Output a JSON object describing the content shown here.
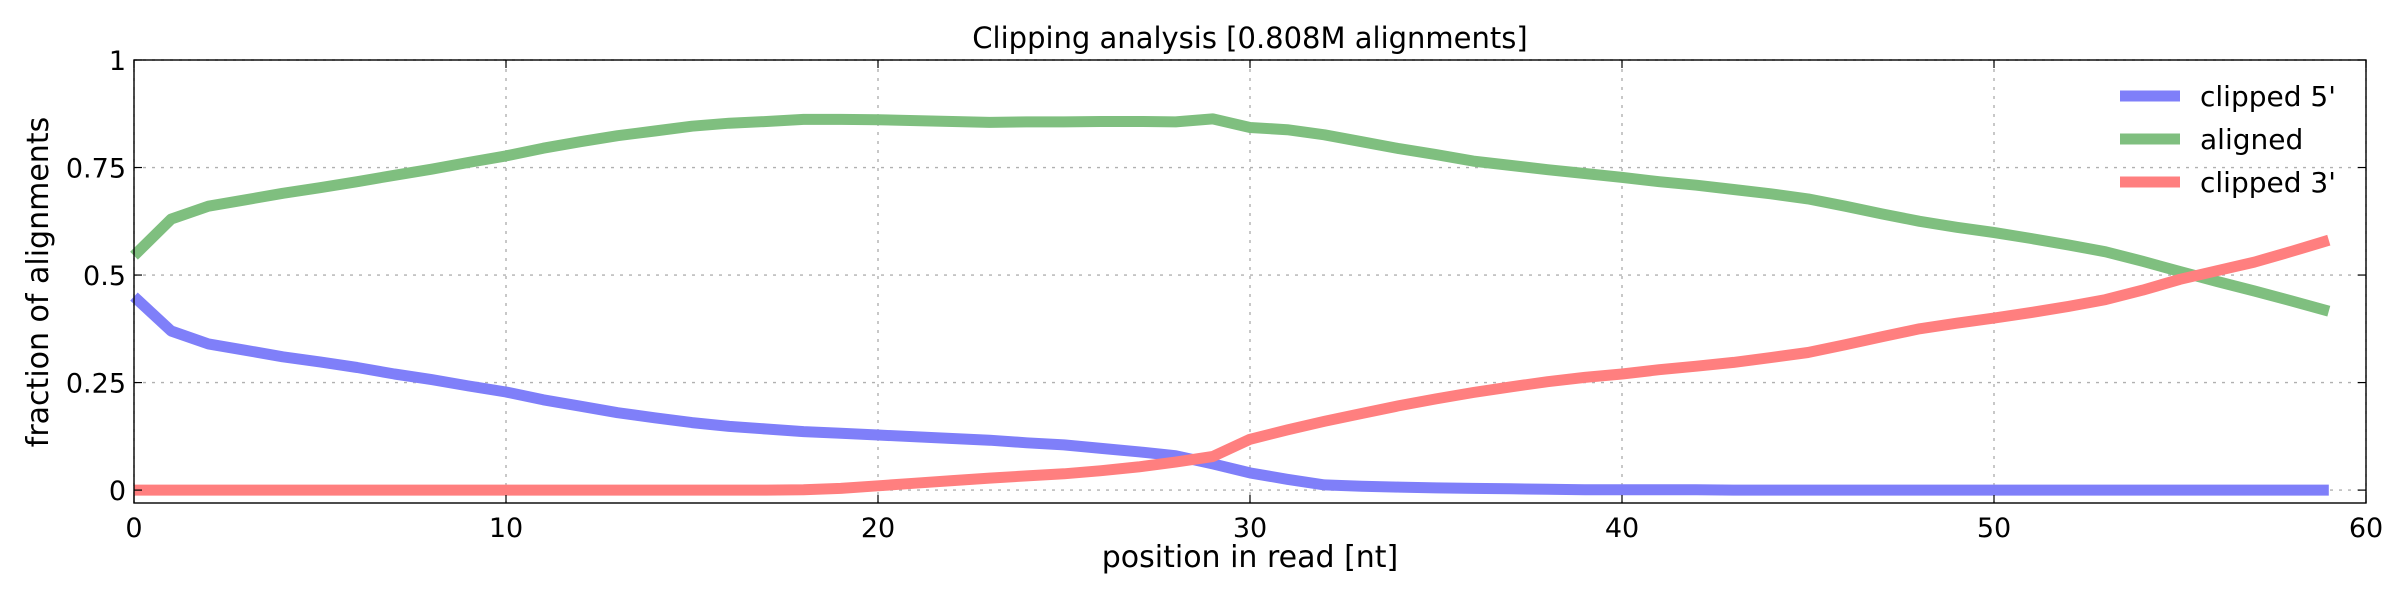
{
  "chart_data": {
    "type": "line",
    "title": "Clipping analysis [0.808M alignments]",
    "xlabel": "position in read [nt]",
    "ylabel": "fraction of alignments",
    "xlim": [
      0,
      60
    ],
    "ylim": [
      -0.03,
      1
    ],
    "xticks": [
      0,
      10,
      20,
      30,
      40,
      50,
      60
    ],
    "xtick_labels": [
      "0",
      "10",
      "20",
      "30",
      "40",
      "50",
      "60"
    ],
    "yticks": [
      0,
      0.25,
      0.5,
      0.75,
      1
    ],
    "ytick_labels": [
      "0",
      "0.25",
      "0.5",
      "0.75",
      "1"
    ],
    "grid": true,
    "legend": "top-right",
    "x": [
      0,
      1,
      2,
      3,
      4,
      5,
      6,
      7,
      8,
      9,
      10,
      11,
      12,
      13,
      14,
      15,
      16,
      17,
      18,
      19,
      20,
      21,
      22,
      23,
      24,
      25,
      26,
      27,
      28,
      29,
      30,
      31,
      32,
      33,
      34,
      35,
      36,
      37,
      38,
      39,
      40,
      41,
      42,
      43,
      44,
      45,
      46,
      47,
      48,
      49,
      50,
      51,
      52,
      53,
      54,
      55,
      56,
      57,
      58,
      59
    ],
    "series": [
      {
        "name": "clipped 5'",
        "color": "#7f7ff9",
        "values": [
          0.45,
          0.37,
          0.34,
          0.325,
          0.31,
          0.298,
          0.285,
          0.27,
          0.257,
          0.242,
          0.228,
          0.21,
          0.195,
          0.18,
          0.168,
          0.157,
          0.148,
          0.142,
          0.136,
          0.132,
          0.128,
          0.124,
          0.12,
          0.116,
          0.11,
          0.105,
          0.097,
          0.089,
          0.08,
          0.061,
          0.04,
          0.025,
          0.012,
          0.009,
          0.007,
          0.005,
          0.004,
          0.003,
          0.002,
          0.001,
          0.001,
          0.001,
          0.001,
          0,
          0,
          0,
          0,
          0,
          0,
          0,
          0,
          0,
          0,
          0,
          0,
          0,
          0,
          0,
          0,
          0
        ]
      },
      {
        "name": "aligned",
        "color": "#7fbf7f",
        "values": [
          0.545,
          0.63,
          0.66,
          0.675,
          0.69,
          0.703,
          0.717,
          0.732,
          0.746,
          0.762,
          0.777,
          0.795,
          0.81,
          0.824,
          0.835,
          0.846,
          0.853,
          0.857,
          0.862,
          0.862,
          0.861,
          0.859,
          0.857,
          0.855,
          0.856,
          0.856,
          0.857,
          0.857,
          0.856,
          0.863,
          0.843,
          0.838,
          0.826,
          0.81,
          0.794,
          0.78,
          0.765,
          0.755,
          0.745,
          0.736,
          0.727,
          0.717,
          0.709,
          0.699,
          0.689,
          0.677,
          0.66,
          0.642,
          0.625,
          0.611,
          0.599,
          0.585,
          0.57,
          0.554,
          0.532,
          0.508,
          0.485,
          0.463,
          0.44,
          0.416
        ]
      },
      {
        "name": "clipped 3'",
        "color": "#ff7f7f",
        "values": [
          0,
          0,
          0,
          0,
          0,
          0,
          0,
          0,
          0,
          0,
          0,
          0,
          0,
          0,
          0,
          0,
          0,
          0,
          0.001,
          0.004,
          0.01,
          0.016,
          0.022,
          0.028,
          0.033,
          0.038,
          0.045,
          0.054,
          0.065,
          0.078,
          0.118,
          0.14,
          0.16,
          0.178,
          0.196,
          0.212,
          0.227,
          0.24,
          0.252,
          0.262,
          0.27,
          0.28,
          0.288,
          0.297,
          0.308,
          0.32,
          0.338,
          0.357,
          0.375,
          0.388,
          0.4,
          0.413,
          0.427,
          0.443,
          0.465,
          0.49,
          0.51,
          0.53,
          0.555,
          0.581
        ]
      }
    ]
  }
}
